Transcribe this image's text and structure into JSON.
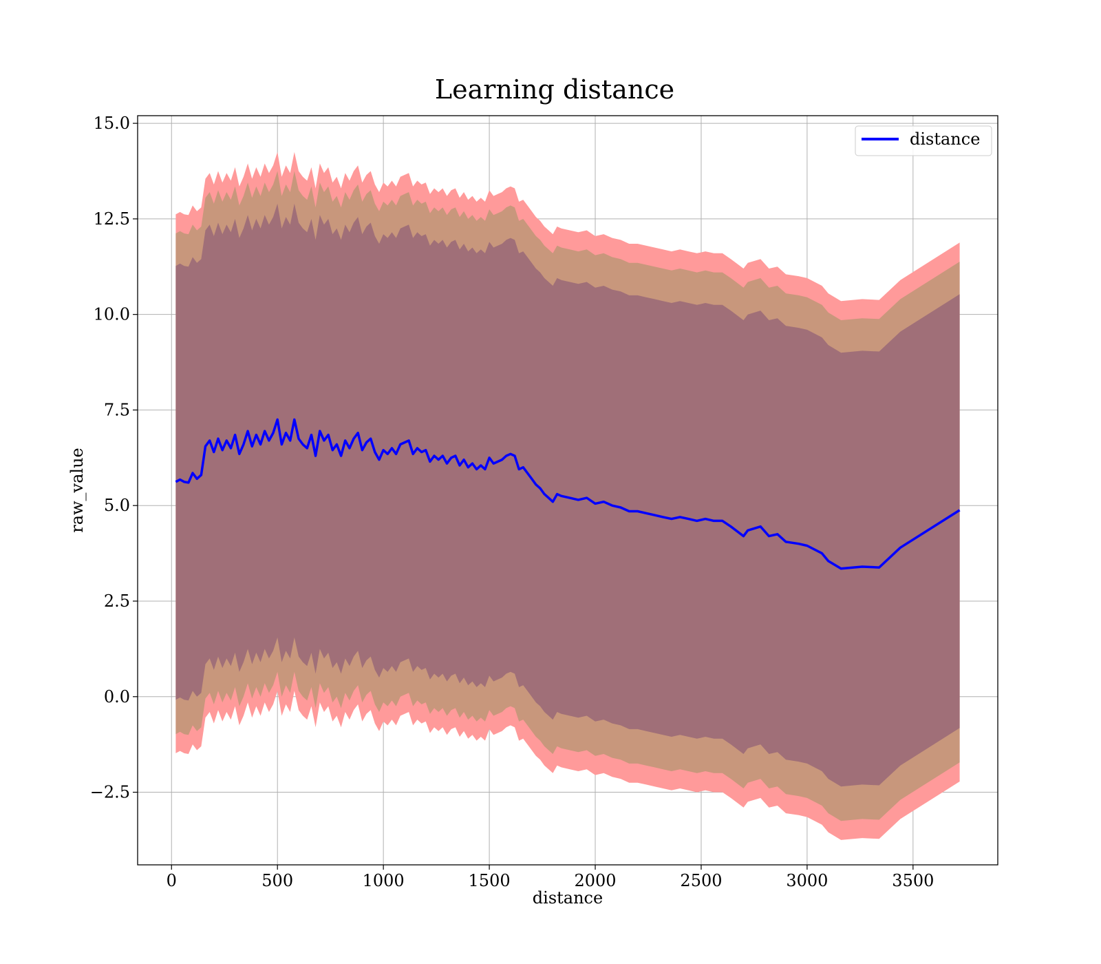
{
  "chart_data": {
    "type": "line",
    "title": "Learning distance",
    "xlabel": "distance",
    "ylabel": "raw_value",
    "xlim": [
      -160,
      3900
    ],
    "ylim": [
      -4.4,
      15.2
    ],
    "xticks": [
      0,
      500,
      1000,
      1500,
      2000,
      2500,
      3000,
      3500
    ],
    "xtick_labels": [
      "0",
      "500",
      "1000",
      "1500",
      "2000",
      "2500",
      "3000",
      "3500"
    ],
    "yticks": [
      -2.5,
      0.0,
      2.5,
      5.0,
      7.5,
      10.0,
      12.5,
      15.0
    ],
    "ytick_labels": [
      "−2.5",
      "0.0",
      "2.5",
      "5.0",
      "7.5",
      "10.0",
      "12.5",
      "15.0"
    ],
    "grid": true,
    "legend": {
      "position": "top-right",
      "entries": [
        {
          "label": "distance",
          "color": "#0000ff"
        }
      ]
    },
    "colors": {
      "line": "#0000ff",
      "band_outer": "#ff9a9a",
      "band_middle": "#c8977c",
      "band_inner": "#a06f78",
      "grid": "#b0b0b0"
    },
    "series": [
      {
        "name": "distance",
        "x": [
          20,
          40,
          60,
          80,
          100,
          120,
          140,
          160,
          180,
          200,
          220,
          240,
          260,
          280,
          300,
          320,
          340,
          360,
          380,
          400,
          420,
          440,
          460,
          480,
          500,
          520,
          540,
          560,
          580,
          600,
          620,
          640,
          660,
          680,
          700,
          720,
          740,
          760,
          780,
          800,
          820,
          840,
          860,
          880,
          900,
          920,
          940,
          960,
          980,
          1000,
          1020,
          1040,
          1060,
          1080,
          1100,
          1120,
          1140,
          1160,
          1180,
          1200,
          1220,
          1240,
          1260,
          1280,
          1300,
          1320,
          1340,
          1360,
          1380,
          1400,
          1420,
          1440,
          1460,
          1480,
          1500,
          1520,
          1540,
          1560,
          1580,
          1600,
          1620,
          1640,
          1660,
          1680,
          1700,
          1720,
          1740,
          1760,
          1780,
          1800,
          1820,
          1840,
          1880,
          1920,
          1960,
          2000,
          2040,
          2080,
          2120,
          2160,
          2200,
          2240,
          2280,
          2320,
          2360,
          2400,
          2440,
          2480,
          2520,
          2560,
          2600,
          2640,
          2700,
          2720,
          2780,
          2820,
          2860,
          2900,
          2960,
          3000,
          3070,
          3100,
          3160,
          3260,
          3340,
          3440,
          3720
        ],
        "y": [
          5.62,
          5.68,
          5.62,
          5.6,
          5.85,
          5.7,
          5.8,
          6.55,
          6.7,
          6.4,
          6.75,
          6.45,
          6.7,
          6.5,
          6.85,
          6.35,
          6.6,
          6.95,
          6.55,
          6.85,
          6.6,
          6.95,
          6.7,
          6.9,
          7.25,
          6.6,
          6.9,
          6.7,
          7.25,
          6.75,
          6.6,
          6.5,
          6.85,
          6.3,
          6.95,
          6.7,
          6.85,
          6.45,
          6.6,
          6.3,
          6.7,
          6.5,
          6.75,
          6.9,
          6.45,
          6.65,
          6.75,
          6.4,
          6.2,
          6.45,
          6.35,
          6.5,
          6.35,
          6.6,
          6.65,
          6.7,
          6.35,
          6.5,
          6.4,
          6.45,
          6.15,
          6.3,
          6.2,
          6.3,
          6.1,
          6.25,
          6.3,
          6.05,
          6.2,
          6.0,
          6.1,
          5.95,
          6.05,
          5.95,
          6.25,
          6.1,
          6.15,
          6.2,
          6.3,
          6.35,
          6.3,
          5.95,
          6.0,
          5.85,
          5.7,
          5.55,
          5.45,
          5.3,
          5.2,
          5.1,
          5.3,
          5.25,
          5.2,
          5.15,
          5.2,
          5.05,
          5.1,
          5.0,
          4.95,
          4.85,
          4.85,
          4.8,
          4.75,
          4.7,
          4.65,
          4.7,
          4.65,
          4.6,
          4.65,
          4.6,
          4.6,
          4.45,
          4.2,
          4.35,
          4.45,
          4.2,
          4.25,
          4.05,
          4.0,
          3.95,
          3.75,
          3.55,
          3.35,
          3.4,
          3.38,
          3.9,
          4.88
        ]
      }
    ],
    "bands": [
      {
        "name": "outer",
        "offset_upper": 7.0,
        "offset_lower": 7.1
      },
      {
        "name": "middle",
        "offset_upper": 6.5,
        "offset_lower": 6.6
      },
      {
        "name": "inner",
        "offset_upper": 5.65,
        "offset_lower": 5.7
      }
    ]
  }
}
